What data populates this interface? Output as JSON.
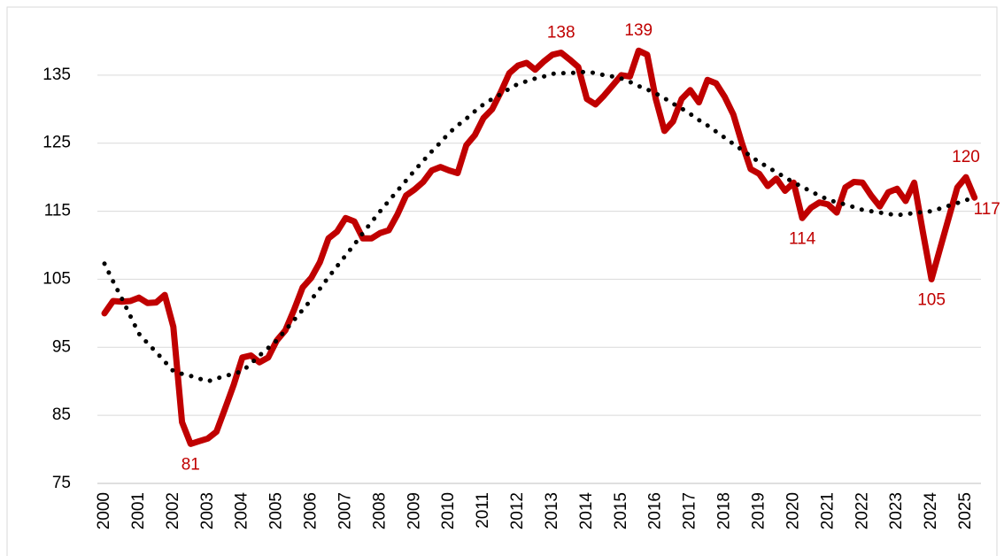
{
  "chart_data": {
    "type": "line",
    "categories": [
      "2000",
      null,
      null,
      null,
      "2001",
      null,
      null,
      null,
      "2002",
      null,
      null,
      null,
      "2003",
      null,
      null,
      null,
      "2004",
      null,
      null,
      null,
      "2005",
      null,
      null,
      null,
      "2006",
      null,
      null,
      null,
      "2007",
      null,
      null,
      null,
      "2008",
      null,
      null,
      null,
      "2009",
      null,
      null,
      null,
      "2010",
      null,
      null,
      null,
      "2011",
      null,
      null,
      null,
      "2012",
      null,
      null,
      null,
      "2013",
      null,
      null,
      null,
      "2014",
      null,
      null,
      null,
      "2015",
      null,
      null,
      null,
      "2016",
      null,
      null,
      null,
      "2017",
      null,
      null,
      null,
      "2018",
      null,
      null,
      null,
      "2019",
      null,
      null,
      null,
      "2020",
      null,
      null,
      null,
      "2021",
      null,
      null,
      null,
      "2022",
      null,
      null,
      null,
      "2023",
      null,
      null,
      null,
      "2024",
      null,
      null,
      null,
      "2025",
      null
    ],
    "series": [
      {
        "color": "#c00000",
        "style": "solid",
        "values": [
          100,
          101.8,
          101.7,
          101.8,
          102.3,
          101.5,
          101.6,
          102.7,
          98,
          84,
          80.8,
          81.2,
          81.6,
          82.6,
          86,
          89.5,
          93.5,
          93.8,
          92.8,
          93.5,
          96,
          97.5,
          100.5,
          103.8,
          105.2,
          107.5,
          111,
          112,
          114,
          113.5,
          111,
          111,
          111.8,
          112.2,
          114.5,
          117.3,
          118.2,
          119.3,
          121,
          121.5,
          121,
          120.6,
          124.7,
          126.2,
          128.7,
          130,
          132.5,
          135.3,
          136.4,
          136.8,
          135.8,
          137,
          138,
          138.3,
          137.3,
          136.2,
          131.5,
          130.7,
          132,
          133.5,
          135,
          134.8,
          138.6,
          138,
          131.5,
          126.8,
          128.2,
          131.5,
          132.8,
          131,
          134.3,
          133.8,
          131.8,
          129.2,
          125,
          121.2,
          120.5,
          118.7,
          119.8,
          118,
          119.2,
          114,
          115.5,
          116.3,
          116,
          114.8,
          118.5,
          119.3,
          119.2,
          117.3,
          115.7,
          117.8,
          118.3,
          116.5,
          119.2,
          112,
          105,
          109.5,
          114,
          118.5,
          120,
          117
        ],
        "value_labels": [
          null,
          null,
          null,
          null,
          null,
          null,
          null,
          null,
          null,
          null,
          "81",
          null,
          null,
          null,
          null,
          null,
          null,
          null,
          null,
          null,
          null,
          null,
          null,
          null,
          null,
          null,
          null,
          null,
          null,
          null,
          null,
          null,
          null,
          null,
          null,
          null,
          null,
          null,
          null,
          null,
          null,
          null,
          null,
          null,
          null,
          null,
          null,
          null,
          null,
          null,
          null,
          null,
          null,
          "138",
          null,
          null,
          null,
          null,
          null,
          null,
          null,
          null,
          "139",
          null,
          null,
          null,
          null,
          null,
          null,
          null,
          null,
          null,
          null,
          null,
          null,
          null,
          null,
          null,
          null,
          null,
          null,
          "114",
          null,
          null,
          null,
          null,
          null,
          null,
          null,
          null,
          null,
          null,
          null,
          null,
          null,
          null,
          "105",
          null,
          null,
          null,
          "120",
          "117"
        ]
      },
      {
        "color": "#000000",
        "style": "dotted",
        "values": [
          107.3,
          104.7,
          102.2,
          99.6,
          97,
          95.6,
          94.3,
          92.9,
          91.5,
          91.1,
          90.8,
          90.4,
          90,
          90.4,
          90.8,
          91.1,
          91.5,
          92.6,
          93.8,
          94.9,
          96,
          97.5,
          99,
          100.5,
          102,
          103.6,
          105.3,
          106.9,
          108.5,
          110.1,
          111.8,
          113.4,
          115,
          116.5,
          118,
          119.5,
          121,
          122.4,
          123.8,
          125.1,
          126.5,
          127.6,
          128.6,
          129.7,
          130.7,
          131.5,
          132.2,
          133,
          133.7,
          134.1,
          134.5,
          134.8,
          135.2,
          135.3,
          135.3,
          135.4,
          135.5,
          135.3,
          135,
          134.8,
          134.5,
          134,
          133.4,
          132.9,
          132.3,
          131.6,
          130.8,
          130.1,
          129.3,
          128.4,
          127.6,
          126.7,
          125.8,
          124.9,
          124,
          123.1,
          122.2,
          121.5,
          120.7,
          120,
          119.2,
          118.6,
          117.9,
          117.3,
          116.7,
          116.3,
          116,
          115.6,
          115.2,
          115,
          114.8,
          114.6,
          114.4,
          114.6,
          114.7,
          114.9,
          115,
          115.4,
          115.8,
          116.2,
          116.6,
          117.2
        ]
      }
    ],
    "ylim": [
      75,
      145
    ],
    "yticks": [
      75,
      85,
      95,
      105,
      115,
      125,
      135
    ],
    "grid": true
  }
}
